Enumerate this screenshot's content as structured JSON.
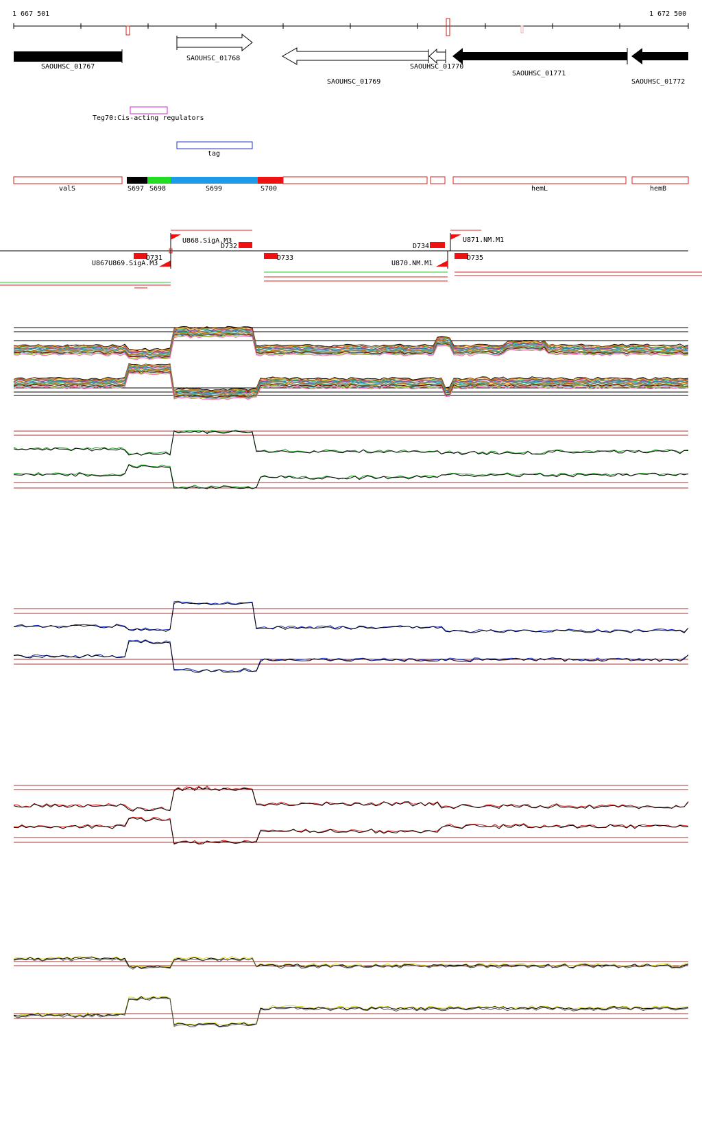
{
  "ruler": {
    "start_label": "1 667 501",
    "end_label": "1 672 500",
    "start": 1667501,
    "end": 1672500
  },
  "genes": [
    {
      "id": "g1767",
      "label": "SAOUHSC_01767"
    },
    {
      "id": "g1768",
      "label": "SAOUHSC_01768"
    },
    {
      "id": "g1769",
      "label": "SAOUHSC_01769"
    },
    {
      "id": "g1770",
      "label": "SAOUHSC_01770"
    },
    {
      "id": "g1771",
      "label": "SAOUHSC_01771"
    },
    {
      "id": "g1772",
      "label": "SAOUHSC_01772"
    }
  ],
  "regulator": {
    "label": "Teg70:Cis-acting regulators"
  },
  "tag": {
    "label": "tag"
  },
  "segments": [
    {
      "id": "valS",
      "label": "valS"
    },
    {
      "id": "S697",
      "label": "S697"
    },
    {
      "id": "S698",
      "label": "S698"
    },
    {
      "id": "S699",
      "label": "S699"
    },
    {
      "id": "S700",
      "label": "S700"
    },
    {
      "id": "hemL",
      "label": "hemL"
    },
    {
      "id": "hemB",
      "label": "hemB"
    }
  ],
  "tss_features": [
    {
      "id": "U868",
      "label": "U868.SigA.M3"
    },
    {
      "id": "D732",
      "label": "D732"
    },
    {
      "id": "D731",
      "label": "D731"
    },
    {
      "id": "U867",
      "label": "U867U869.SigA.M3"
    },
    {
      "id": "D733",
      "label": "D733"
    },
    {
      "id": "D734",
      "label": "D734"
    },
    {
      "id": "U870",
      "label": "U870.NM.M1"
    },
    {
      "id": "U871",
      "label": "U871.NM.M1"
    },
    {
      "id": "D735",
      "label": "D735"
    }
  ],
  "colors": {
    "gene_fill": "#000000",
    "segment_outline": "#dd2222",
    "regulator": "#dd22dd",
    "tag": "#2233cc",
    "S697": "#000000",
    "S698": "#22dd22",
    "S699": "#1e9be8",
    "S700": "#ee1111",
    "panel_green": "#1a9a1a",
    "panel_blue": "#1a2fc8",
    "panel_red": "#d41a1a",
    "panel_yellow": "#d8d81a",
    "threshold": "#a83232"
  },
  "expression_panels": [
    {
      "name": "multi-condition",
      "series_color": "mixed"
    },
    {
      "name": "green",
      "series_color": "#1a9a1a"
    },
    {
      "name": "blue",
      "series_color": "#1a2fc8"
    },
    {
      "name": "red",
      "series_color": "#d41a1a"
    },
    {
      "name": "yellow",
      "series_color": "#d8d81a"
    }
  ]
}
